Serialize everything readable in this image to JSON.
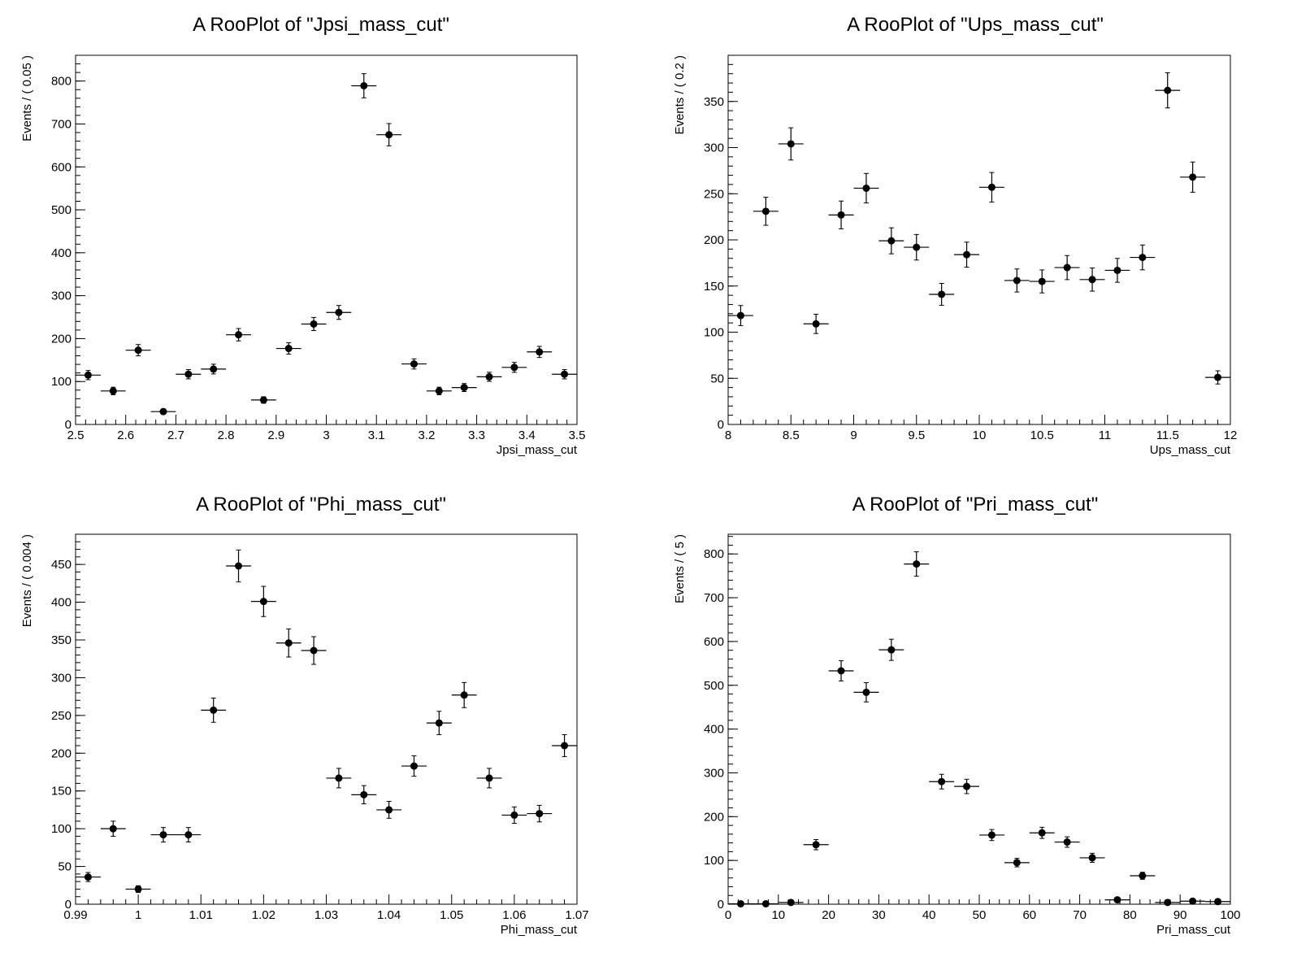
{
  "colors": {
    "marker": "#000000",
    "frame": "#000000",
    "background": "#ffffff"
  },
  "chart_data": [
    {
      "type": "scatter",
      "title": "A RooPlot of \"Jpsi_mass_cut\"",
      "xlabel": "Jpsi_mass_cut",
      "ylabel": "Events / ( 0.05 )",
      "xlim": [
        2.5,
        3.5
      ],
      "ylim": [
        0,
        860
      ],
      "xticks": [
        2.5,
        2.6,
        2.7,
        2.8,
        2.9,
        3.0,
        3.1,
        3.2,
        3.3,
        3.4,
        3.5
      ],
      "xtick_labels": [
        "2.5",
        "2.6",
        "2.7",
        "2.8",
        "2.9",
        "3",
        "3.1",
        "3.2",
        "3.3",
        "3.4",
        "3.5"
      ],
      "yticks": [
        0,
        100,
        200,
        300,
        400,
        500,
        600,
        700,
        800
      ],
      "ytick_labels": [
        "0",
        "100",
        "200",
        "300",
        "400",
        "500",
        "600",
        "700",
        "800"
      ],
      "bin_width": 0.05,
      "grid": false,
      "series": [
        {
          "x": [
            2.525,
            2.575,
            2.625,
            2.675,
            2.725,
            2.775,
            2.825,
            2.875,
            2.925,
            2.975,
            3.025,
            3.075,
            3.125,
            3.175,
            3.225,
            3.275,
            3.325,
            3.375,
            3.425,
            3.475
          ],
          "y": [
            115,
            78,
            173,
            30,
            117,
            129,
            209,
            57,
            177,
            234,
            261,
            789,
            675,
            141,
            78,
            86,
            111,
            133,
            169,
            117
          ]
        }
      ]
    },
    {
      "type": "scatter",
      "title": "A RooPlot of \"Ups_mass_cut\"",
      "xlabel": "Ups_mass_cut",
      "ylabel": "Events / ( 0.2 )",
      "xlim": [
        8,
        12
      ],
      "ylim": [
        0,
        400
      ],
      "xticks": [
        8,
        8.5,
        9,
        9.5,
        10,
        10.5,
        11,
        11.5,
        12
      ],
      "xtick_labels": [
        "8",
        "8.5",
        "9",
        "9.5",
        "10",
        "10.5",
        "11",
        "11.5",
        "12"
      ],
      "yticks": [
        0,
        50,
        100,
        150,
        200,
        250,
        300,
        350
      ],
      "ytick_labels": [
        "0",
        "50",
        "100",
        "150",
        "200",
        "250",
        "300",
        "350"
      ],
      "bin_width": 0.2,
      "grid": false,
      "series": [
        {
          "x": [
            8.1,
            8.3,
            8.5,
            8.7,
            8.9,
            9.1,
            9.3,
            9.5,
            9.7,
            9.9,
            10.1,
            10.3,
            10.5,
            10.7,
            10.9,
            11.1,
            11.3,
            11.5,
            11.7,
            11.9
          ],
          "y": [
            118,
            231,
            304,
            109,
            227,
            256,
            199,
            192,
            141,
            184,
            257,
            156,
            155,
            170,
            157,
            167,
            181,
            362,
            268,
            51
          ]
        }
      ]
    },
    {
      "type": "scatter",
      "title": "A RooPlot of \"Phi_mass_cut\"",
      "xlabel": "Phi_mass_cut",
      "ylabel": "Events / ( 0.004 )",
      "xlim": [
        0.99,
        1.07
      ],
      "ylim": [
        0,
        490
      ],
      "xticks": [
        0.99,
        1.0,
        1.01,
        1.02,
        1.03,
        1.04,
        1.05,
        1.06,
        1.07
      ],
      "xtick_labels": [
        "0.99",
        "1",
        "1.01",
        "1.02",
        "1.03",
        "1.04",
        "1.05",
        "1.06",
        "1.07"
      ],
      "yticks": [
        0,
        50,
        100,
        150,
        200,
        250,
        300,
        350,
        400,
        450
      ],
      "ytick_labels": [
        "0",
        "50",
        "100",
        "150",
        "200",
        "250",
        "300",
        "350",
        "400",
        "450"
      ],
      "bin_width": 0.004,
      "grid": false,
      "series": [
        {
          "x": [
            0.992,
            0.996,
            1.0,
            1.004,
            1.008,
            1.012,
            1.016,
            1.02,
            1.024,
            1.028,
            1.032,
            1.036,
            1.04,
            1.044,
            1.048,
            1.052,
            1.056,
            1.06,
            1.064,
            1.068
          ],
          "y": [
            36,
            100,
            20,
            92,
            92,
            257,
            448,
            401,
            346,
            336,
            167,
            145,
            125,
            183,
            240,
            277,
            167,
            118,
            120,
            210
          ]
        }
      ]
    },
    {
      "type": "scatter",
      "title": "A RooPlot of \"Pri_mass_cut\"",
      "xlabel": "Pri_mass_cut",
      "ylabel": "Events / ( 5 )",
      "xlim": [
        0,
        100
      ],
      "ylim": [
        0,
        845
      ],
      "xticks": [
        0,
        10,
        20,
        30,
        40,
        50,
        60,
        70,
        80,
        90,
        100
      ],
      "xtick_labels": [
        "0",
        "10",
        "20",
        "30",
        "40",
        "50",
        "60",
        "70",
        "80",
        "90",
        "100"
      ],
      "yticks": [
        0,
        100,
        200,
        300,
        400,
        500,
        600,
        700,
        800
      ],
      "ytick_labels": [
        "0",
        "100",
        "200",
        "300",
        "400",
        "500",
        "600",
        "700",
        "800"
      ],
      "bin_width": 5,
      "grid": false,
      "series": [
        {
          "x": [
            2.5,
            7.5,
            12.5,
            17.5,
            22.5,
            27.5,
            32.5,
            37.5,
            42.5,
            47.5,
            52.5,
            57.5,
            62.5,
            67.5,
            72.5,
            77.5,
            82.5,
            87.5,
            92.5,
            97.5
          ],
          "y": [
            1,
            1,
            4,
            136,
            533,
            484,
            581,
            777,
            280,
            269,
            158,
            95,
            163,
            142,
            106,
            10,
            65,
            4,
            7,
            6
          ]
        }
      ]
    }
  ]
}
